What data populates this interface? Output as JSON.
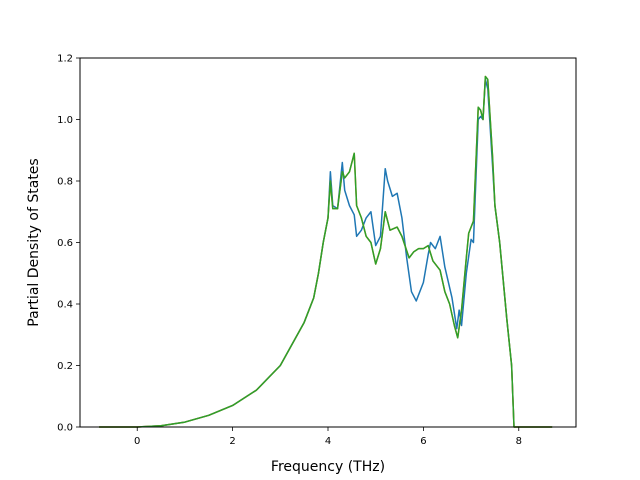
{
  "chart_data": {
    "type": "line",
    "title": "",
    "xlabel": "Frequency (THz)",
    "ylabel": "Partial Density of States",
    "xlim": [
      -1.2,
      9.2
    ],
    "ylim": [
      0.0,
      1.2
    ],
    "x_ticks": [
      0,
      2,
      4,
      6,
      8
    ],
    "y_ticks": [
      0.0,
      0.2,
      0.4,
      0.6,
      0.8,
      1.0,
      1.2
    ],
    "x_tick_labels": [
      "0",
      "2",
      "4",
      "6",
      "8"
    ],
    "y_tick_labels": [
      "0.0",
      "0.2",
      "0.4",
      "0.6",
      "0.8",
      "1.0",
      "1.2"
    ],
    "grid": false,
    "legend": false,
    "series": [
      {
        "color": "#1f77b4",
        "points": [
          [
            -0.8,
            0.0
          ],
          [
            0.0,
            0.0
          ],
          [
            0.5,
            0.004
          ],
          [
            1.0,
            0.016
          ],
          [
            1.5,
            0.038
          ],
          [
            2.0,
            0.07
          ],
          [
            2.5,
            0.12
          ],
          [
            3.0,
            0.2
          ],
          [
            3.5,
            0.34
          ],
          [
            3.7,
            0.42
          ],
          [
            3.8,
            0.5
          ],
          [
            3.9,
            0.6
          ],
          [
            4.0,
            0.68
          ],
          [
            4.05,
            0.83
          ],
          [
            4.1,
            0.72
          ],
          [
            4.2,
            0.71
          ],
          [
            4.3,
            0.86
          ],
          [
            4.35,
            0.77
          ],
          [
            4.45,
            0.72
          ],
          [
            4.55,
            0.69
          ],
          [
            4.6,
            0.62
          ],
          [
            4.7,
            0.64
          ],
          [
            4.8,
            0.68
          ],
          [
            4.9,
            0.7
          ],
          [
            5.0,
            0.59
          ],
          [
            5.1,
            0.62
          ],
          [
            5.2,
            0.84
          ],
          [
            5.25,
            0.8
          ],
          [
            5.35,
            0.75
          ],
          [
            5.45,
            0.76
          ],
          [
            5.55,
            0.68
          ],
          [
            5.65,
            0.55
          ],
          [
            5.75,
            0.44
          ],
          [
            5.85,
            0.41
          ],
          [
            6.0,
            0.47
          ],
          [
            6.1,
            0.56
          ],
          [
            6.15,
            0.6
          ],
          [
            6.25,
            0.58
          ],
          [
            6.35,
            0.62
          ],
          [
            6.45,
            0.52
          ],
          [
            6.6,
            0.42
          ],
          [
            6.7,
            0.32
          ],
          [
            6.75,
            0.38
          ],
          [
            6.8,
            0.33
          ],
          [
            6.9,
            0.5
          ],
          [
            7.0,
            0.61
          ],
          [
            7.05,
            0.6
          ],
          [
            7.15,
            1.0
          ],
          [
            7.2,
            1.01
          ],
          [
            7.25,
            1.0
          ],
          [
            7.3,
            1.13
          ],
          [
            7.35,
            1.1
          ],
          [
            7.45,
            0.85
          ],
          [
            7.5,
            0.72
          ],
          [
            7.6,
            0.6
          ],
          [
            7.75,
            0.35
          ],
          [
            7.85,
            0.2
          ],
          [
            7.9,
            0.0
          ],
          [
            8.7,
            0.0
          ]
        ]
      },
      {
        "color": "#ff7f0e",
        "points": [
          [
            -0.8,
            0.0
          ],
          [
            0.0,
            0.0
          ],
          [
            0.5,
            0.004
          ],
          [
            1.0,
            0.016
          ],
          [
            1.5,
            0.038
          ],
          [
            2.0,
            0.07
          ],
          [
            2.5,
            0.12
          ],
          [
            3.0,
            0.2
          ],
          [
            3.5,
            0.34
          ],
          [
            3.7,
            0.42
          ],
          [
            3.8,
            0.5
          ],
          [
            3.9,
            0.6
          ],
          [
            4.0,
            0.68
          ],
          [
            4.05,
            0.8
          ],
          [
            4.1,
            0.71
          ],
          [
            4.2,
            0.71
          ],
          [
            4.3,
            0.83
          ],
          [
            4.35,
            0.81
          ],
          [
            4.45,
            0.83
          ],
          [
            4.55,
            0.89
          ],
          [
            4.6,
            0.72
          ],
          [
            4.7,
            0.68
          ],
          [
            4.8,
            0.62
          ],
          [
            4.9,
            0.6
          ],
          [
            5.0,
            0.53
          ],
          [
            5.1,
            0.58
          ],
          [
            5.2,
            0.7
          ],
          [
            5.3,
            0.64
          ],
          [
            5.45,
            0.65
          ],
          [
            5.55,
            0.62
          ],
          [
            5.7,
            0.55
          ],
          [
            5.8,
            0.57
          ],
          [
            5.9,
            0.58
          ],
          [
            6.0,
            0.58
          ],
          [
            6.1,
            0.59
          ],
          [
            6.2,
            0.54
          ],
          [
            6.35,
            0.51
          ],
          [
            6.45,
            0.44
          ],
          [
            6.55,
            0.4
          ],
          [
            6.65,
            0.33
          ],
          [
            6.72,
            0.29
          ],
          [
            6.8,
            0.38
          ],
          [
            6.9,
            0.55
          ],
          [
            6.95,
            0.63
          ],
          [
            7.05,
            0.67
          ],
          [
            7.15,
            1.04
          ],
          [
            7.2,
            1.03
          ],
          [
            7.25,
            1.0
          ],
          [
            7.3,
            1.14
          ],
          [
            7.35,
            1.13
          ],
          [
            7.45,
            0.88
          ],
          [
            7.5,
            0.72
          ],
          [
            7.6,
            0.6
          ],
          [
            7.75,
            0.35
          ],
          [
            7.85,
            0.2
          ],
          [
            7.9,
            0.0
          ],
          [
            8.7,
            0.0
          ]
        ]
      },
      {
        "color": "#2ca02c",
        "points": [
          [
            -0.8,
            0.0
          ],
          [
            0.0,
            0.0
          ],
          [
            0.5,
            0.004
          ],
          [
            1.0,
            0.016
          ],
          [
            1.5,
            0.038
          ],
          [
            2.0,
            0.07
          ],
          [
            2.5,
            0.12
          ],
          [
            3.0,
            0.2
          ],
          [
            3.5,
            0.34
          ],
          [
            3.7,
            0.42
          ],
          [
            3.8,
            0.5
          ],
          [
            3.9,
            0.6
          ],
          [
            4.0,
            0.68
          ],
          [
            4.05,
            0.8
          ],
          [
            4.1,
            0.71
          ],
          [
            4.2,
            0.71
          ],
          [
            4.3,
            0.83
          ],
          [
            4.35,
            0.81
          ],
          [
            4.45,
            0.83
          ],
          [
            4.55,
            0.89
          ],
          [
            4.6,
            0.72
          ],
          [
            4.7,
            0.68
          ],
          [
            4.8,
            0.62
          ],
          [
            4.9,
            0.6
          ],
          [
            5.0,
            0.53
          ],
          [
            5.1,
            0.58
          ],
          [
            5.2,
            0.7
          ],
          [
            5.3,
            0.64
          ],
          [
            5.45,
            0.65
          ],
          [
            5.55,
            0.62
          ],
          [
            5.7,
            0.55
          ],
          [
            5.8,
            0.57
          ],
          [
            5.9,
            0.58
          ],
          [
            6.0,
            0.58
          ],
          [
            6.1,
            0.59
          ],
          [
            6.2,
            0.54
          ],
          [
            6.35,
            0.51
          ],
          [
            6.45,
            0.44
          ],
          [
            6.55,
            0.4
          ],
          [
            6.65,
            0.33
          ],
          [
            6.72,
            0.29
          ],
          [
            6.8,
            0.38
          ],
          [
            6.9,
            0.55
          ],
          [
            6.95,
            0.63
          ],
          [
            7.05,
            0.67
          ],
          [
            7.15,
            1.04
          ],
          [
            7.2,
            1.03
          ],
          [
            7.25,
            1.0
          ],
          [
            7.3,
            1.14
          ],
          [
            7.35,
            1.13
          ],
          [
            7.45,
            0.88
          ],
          [
            7.5,
            0.72
          ],
          [
            7.6,
            0.6
          ],
          [
            7.75,
            0.35
          ],
          [
            7.85,
            0.2
          ],
          [
            7.9,
            0.0
          ],
          [
            8.7,
            0.0
          ]
        ]
      }
    ]
  }
}
